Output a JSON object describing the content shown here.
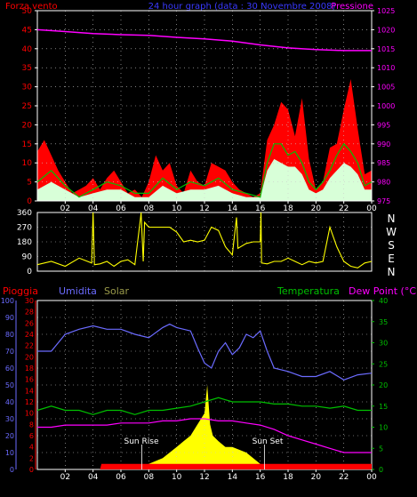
{
  "colors": {
    "red": "#ff0000",
    "blue": "#6b6bff",
    "magenta": "#ff00ff",
    "green": "#00c000",
    "yellow": "#ffff00",
    "olive": "#9a9a4a",
    "white": "#ffffff",
    "pale": "#d8ffd8",
    "frame": "#ffffff",
    "grid": "#cccccc"
  },
  "top": {
    "title_left": "Forza vento",
    "title_center": "24 hour graph (data : 30 Novembre 2008)",
    "title_right": "Pressione",
    "legend_position": "top"
  },
  "dir_labels": [
    "N",
    "W",
    "S",
    "E",
    "N"
  ],
  "bottom": {
    "legend_pioggia": "Pioggia",
    "legend_umidita": "Umidita",
    "legend_solar": "Solar",
    "legend_temp": "Temperatura",
    "legend_dew": "Dew Point (°C)",
    "sun_rise": "Sun Rise",
    "sun_set": "Sun Set"
  },
  "chart_data": [
    {
      "type": "area",
      "title": "24 hour graph (data : 30 Novembre 2008)",
      "x_ticks": [
        "02",
        "04",
        "06",
        "08",
        "10",
        "12",
        "14",
        "16",
        "18",
        "20",
        "22",
        "00"
      ],
      "y_left": {
        "label": "Forza vento",
        "ticks": [
          0,
          5,
          10,
          15,
          20,
          25,
          30,
          35,
          40,
          45,
          50
        ],
        "ylim": [
          0,
          50
        ]
      },
      "y_right": {
        "label": "Pressione",
        "ticks": [
          975,
          980,
          985,
          990,
          995,
          1000,
          1005,
          1010,
          1015,
          1020,
          1025
        ],
        "ylim": [
          975,
          1025
        ]
      },
      "grid": true,
      "series": [
        {
          "name": "Pressione",
          "color": "magenta",
          "axis": "right",
          "x": [
            0,
            2,
            4,
            6,
            8,
            10,
            12,
            14,
            16,
            18,
            20,
            22,
            24
          ],
          "y": [
            1020,
            1019.5,
            1019,
            1018.7,
            1018.5,
            1018,
            1017.6,
            1017,
            1016,
            1015.2,
            1014.8,
            1014.5,
            1014.5
          ]
        },
        {
          "color": "red",
          "axis": "left",
          "x": [
            0,
            0.5,
            1,
            1.5,
            2,
            2.5,
            3,
            3.5,
            4,
            4.5,
            5,
            5.5,
            6,
            6.5,
            7,
            7.5,
            8,
            8.5,
            9,
            9.5,
            10,
            10.5,
            11,
            11.5,
            12,
            12.5,
            13,
            13.5,
            14,
            14.5,
            15,
            15.5,
            16,
            16.5,
            17,
            17.5,
            18,
            18.5,
            19,
            19.5,
            20,
            20.5,
            21,
            21.5,
            22,
            22.5,
            23,
            23.5,
            24
          ],
          "y": [
            13,
            16,
            12,
            8,
            5,
            2,
            3,
            4,
            6,
            3,
            6,
            8,
            5,
            2,
            3,
            1,
            5,
            12,
            8,
            10,
            4,
            2,
            8,
            5,
            4,
            10,
            9,
            8,
            5,
            3,
            2,
            1,
            2,
            16,
            20,
            26,
            24,
            17,
            27,
            11,
            3,
            5,
            14,
            15,
            24,
            32,
            19,
            7,
            8
          ]
        },
        {
          "color": "green",
          "axis": "left",
          "x": [
            0,
            1,
            2,
            3,
            4,
            5,
            6,
            7,
            8,
            9,
            10,
            11,
            12,
            13,
            14,
            15,
            16,
            16.5,
            17,
            17.5,
            18,
            18.5,
            19,
            19.5,
            20,
            20.5,
            21,
            21.5,
            22,
            22.5,
            23,
            23.5,
            24
          ],
          "y": [
            5,
            8,
            4,
            1,
            3,
            5,
            4,
            2,
            2,
            6,
            3,
            5,
            4,
            6,
            3,
            2,
            1,
            10,
            15,
            15,
            12,
            13,
            10,
            5,
            3,
            5,
            8,
            12,
            15,
            13,
            10,
            4,
            5
          ]
        },
        {
          "color": "pale",
          "axis": "left",
          "x": [
            0,
            1,
            2,
            3,
            4,
            5,
            6,
            7,
            8,
            9,
            10,
            11,
            12,
            13,
            14,
            15,
            16,
            16.5,
            17,
            17.5,
            18,
            18.5,
            19,
            19.5,
            20,
            20.5,
            21,
            21.5,
            22,
            22.5,
            23,
            23.5,
            24
          ],
          "y": [
            3,
            5,
            3,
            1,
            2,
            3,
            3,
            1,
            1,
            4,
            2,
            3,
            3,
            4,
            2,
            1,
            1,
            8,
            11,
            10,
            9,
            9,
            7,
            3,
            2,
            3,
            6,
            8,
            10,
            9,
            7,
            3,
            3
          ]
        }
      ]
    },
    {
      "type": "line",
      "y_left": {
        "ticks": [
          0,
          90,
          180,
          270,
          360
        ],
        "ylim": [
          0,
          360
        ]
      },
      "y_right": {
        "ticks": [
          "N",
          "W",
          "S",
          "E",
          "N"
        ]
      },
      "grid": true,
      "series": [
        {
          "color": "yellow",
          "x": [
            0,
            1,
            2,
            3,
            3.9,
            4,
            4.1,
            4.5,
            5,
            5.5,
            6,
            6.5,
            7,
            7.4,
            7.45,
            7.6,
            7.7,
            8,
            8.5,
            9,
            9.5,
            10,
            10.5,
            11,
            11.5,
            12,
            12.5,
            13,
            13.5,
            14,
            14.3,
            14.4,
            15,
            15.5,
            16,
            16.05,
            16.1,
            16.5,
            17,
            17.5,
            18,
            18.5,
            19,
            19.5,
            20,
            20.5,
            21,
            21.5,
            22,
            22.5,
            23,
            23.5,
            24
          ],
          "y": [
            40,
            60,
            30,
            80,
            50,
            360,
            40,
            45,
            60,
            30,
            60,
            70,
            40,
            320,
            360,
            60,
            300,
            270,
            270,
            270,
            270,
            240,
            180,
            190,
            180,
            190,
            270,
            250,
            150,
            100,
            330,
            140,
            170,
            180,
            180,
            360,
            50,
            45,
            60,
            60,
            80,
            60,
            40,
            60,
            50,
            60,
            270,
            150,
            60,
            30,
            20,
            50,
            60
          ]
        }
      ]
    },
    {
      "type": "line",
      "x_ticks": [
        "02",
        "04",
        "06",
        "08",
        "10",
        "12",
        "14",
        "16",
        "18",
        "20",
        "22",
        "00"
      ],
      "y_axes": [
        {
          "label": "Umidita",
          "ticks": [
            0,
            10,
            20,
            30,
            40,
            50,
            60,
            70,
            80,
            90,
            100
          ],
          "ylim": [
            0,
            100
          ]
        },
        {
          "label": "Pioggia",
          "ticks": [
            0,
            2,
            4,
            6,
            8,
            10,
            12,
            14,
            16,
            18,
            20,
            22,
            24,
            26,
            28,
            30
          ],
          "ylim": [
            0,
            30
          ]
        },
        {
          "label": "Temperatura / Dew Point (°C)",
          "ticks": [
            0,
            5,
            10,
            15,
            20,
            25,
            30,
            35,
            40
          ],
          "ylim": [
            0,
            40
          ]
        }
      ],
      "grid": true,
      "series": [
        {
          "name": "Umidita",
          "color": "blue",
          "axis": "umidita",
          "x": [
            0,
            1,
            2,
            3,
            4,
            5,
            6,
            7,
            8,
            9,
            9.5,
            10,
            10.5,
            11,
            11.5,
            12,
            12.5,
            13,
            13.5,
            14,
            14.5,
            15,
            15.5,
            16,
            16.5,
            17,
            18,
            19,
            20,
            21,
            22,
            23,
            24
          ],
          "y": [
            70,
            70,
            80,
            83,
            85,
            83,
            83,
            80,
            78,
            84,
            86,
            84,
            83,
            82,
            72,
            63,
            60,
            70,
            75,
            68,
            72,
            80,
            78,
            82,
            70,
            60,
            58,
            55,
            55,
            58,
            53,
            56,
            57
          ]
        },
        {
          "name": "Temperatura",
          "color": "green",
          "axis": "temp",
          "x": [
            0,
            1,
            2,
            3,
            4,
            5,
            6,
            7,
            8,
            9,
            10,
            11,
            12,
            13,
            14,
            15,
            16,
            17,
            18,
            19,
            20,
            21,
            22,
            23,
            24
          ],
          "y": [
            14,
            15,
            14,
            14,
            13,
            14,
            14,
            13,
            14,
            14,
            14.5,
            15,
            16,
            17,
            16,
            16,
            16,
            15.5,
            15.5,
            15,
            15,
            14.5,
            15,
            14,
            14
          ]
        },
        {
          "name": "Dew Point (°C)",
          "color": "magenta",
          "axis": "temp",
          "x": [
            0,
            1,
            2,
            3,
            4,
            5,
            6,
            7,
            8,
            9,
            10,
            11,
            12,
            13,
            14,
            15,
            16,
            17,
            18,
            19,
            20,
            21,
            22,
            23,
            24
          ],
          "y": [
            10,
            10,
            10.5,
            10.5,
            10.5,
            10.5,
            11,
            11,
            11,
            11.5,
            11.5,
            12,
            12,
            11.5,
            11.5,
            11,
            10.5,
            9.5,
            8,
            7,
            6,
            5,
            4,
            4,
            4
          ]
        },
        {
          "name": "Pioggia",
          "color": "red",
          "axis": "pioggia",
          "x": [
            0,
            4.5,
            4.6,
            24
          ],
          "y": [
            0,
            0,
            1,
            1
          ]
        },
        {
          "name": "Solar",
          "color": "yellow",
          "axis": "pioggia",
          "x": [
            7,
            8,
            9,
            10,
            10.5,
            11,
            11.5,
            12,
            12.2,
            12.4,
            12.6,
            13,
            13.5,
            14,
            15,
            16,
            16.5
          ],
          "y": [
            0,
            1,
            2,
            4,
            5,
            6,
            8,
            10,
            15,
            8,
            6,
            5,
            4,
            4,
            3,
            1,
            0
          ]
        }
      ]
    }
  ]
}
